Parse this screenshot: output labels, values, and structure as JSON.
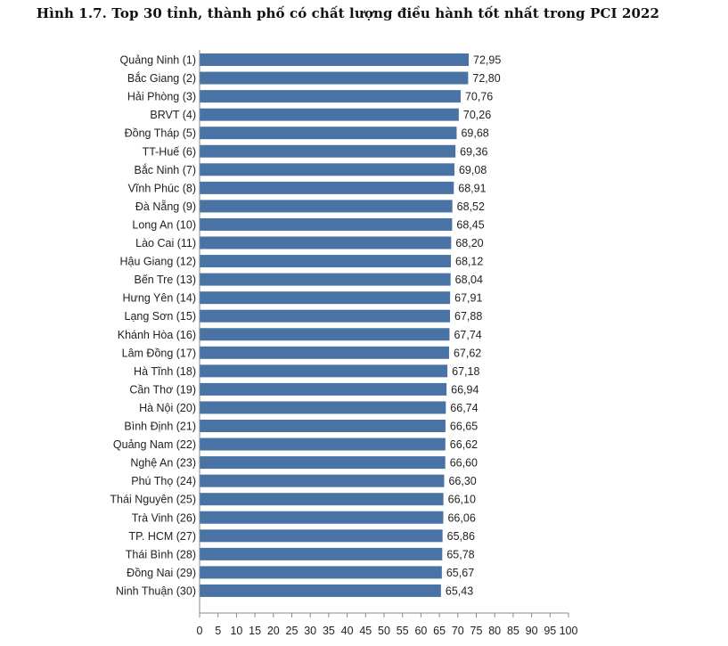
{
  "chart_data": {
    "type": "bar",
    "orientation": "horizontal",
    "title": "Hình 1.7. Top 30 tỉnh, thành phố có chất lượng điều hành tốt nhất trong PCI 2022",
    "xlabel": "",
    "ylabel": "",
    "xlim": [
      0,
      100
    ],
    "x_ticks": [
      0,
      5,
      10,
      15,
      20,
      25,
      30,
      35,
      40,
      45,
      50,
      55,
      60,
      65,
      70,
      75,
      80,
      85,
      90,
      95,
      100
    ],
    "x_tick_labels": [
      "0",
      "5",
      "10",
      "15",
      "20",
      "25",
      "30",
      "35",
      "40",
      "45",
      "50",
      "55",
      "60",
      "65",
      "70",
      "75",
      "80",
      "85",
      "90",
      "95",
      "100"
    ],
    "grid": false,
    "legend": "none",
    "bar_color": "#4a73a5",
    "categories": [
      "Quảng Ninh (1)",
      "Bắc Giang (2)",
      "Hải Phòng (3)",
      "BRVT (4)",
      "Đồng Tháp (5)",
      "TT-Huế (6)",
      "Bắc Ninh (7)",
      "Vĩnh Phúc (8)",
      "Đà Nẵng (9)",
      "Long An (10)",
      "Lào Cai (11)",
      "Hậu Giang (12)",
      "Bến Tre (13)",
      "Hưng Yên (14)",
      "Lạng Sơn (15)",
      "Khánh Hòa (16)",
      "Lâm Đồng (17)",
      "Hà Tĩnh (18)",
      "Cần Thơ (19)",
      "Hà Nội (20)",
      "Bình Định (21)",
      "Quảng Nam (22)",
      "Nghệ An (23)",
      "Phú Thọ (24)",
      "Thái Nguyên (25)",
      "Trà Vinh (26)",
      "TP. HCM (27)",
      "Thái Bình (28)",
      "Đồng Nai (29)",
      "Ninh Thuận (30)"
    ],
    "values": [
      72.95,
      72.8,
      70.76,
      70.26,
      69.68,
      69.36,
      69.08,
      68.91,
      68.52,
      68.45,
      68.2,
      68.12,
      68.04,
      67.91,
      67.88,
      67.74,
      67.62,
      67.18,
      66.94,
      66.74,
      66.65,
      66.62,
      66.6,
      66.3,
      66.1,
      66.06,
      65.86,
      65.78,
      65.67,
      65.43
    ],
    "value_labels": [
      "72,95",
      "72,80",
      "70,76",
      "70,26",
      "69,68",
      "69,36",
      "69,08",
      "68,91",
      "68,52",
      "68,45",
      "68,20",
      "68,12",
      "68,04",
      "67,91",
      "67,88",
      "67,74",
      "67,62",
      "67,18",
      "66,94",
      "66,74",
      "66,65",
      "66,62",
      "66,60",
      "66,30",
      "66,10",
      "66,06",
      "65,86",
      "65,78",
      "65,67",
      "65,43"
    ]
  }
}
